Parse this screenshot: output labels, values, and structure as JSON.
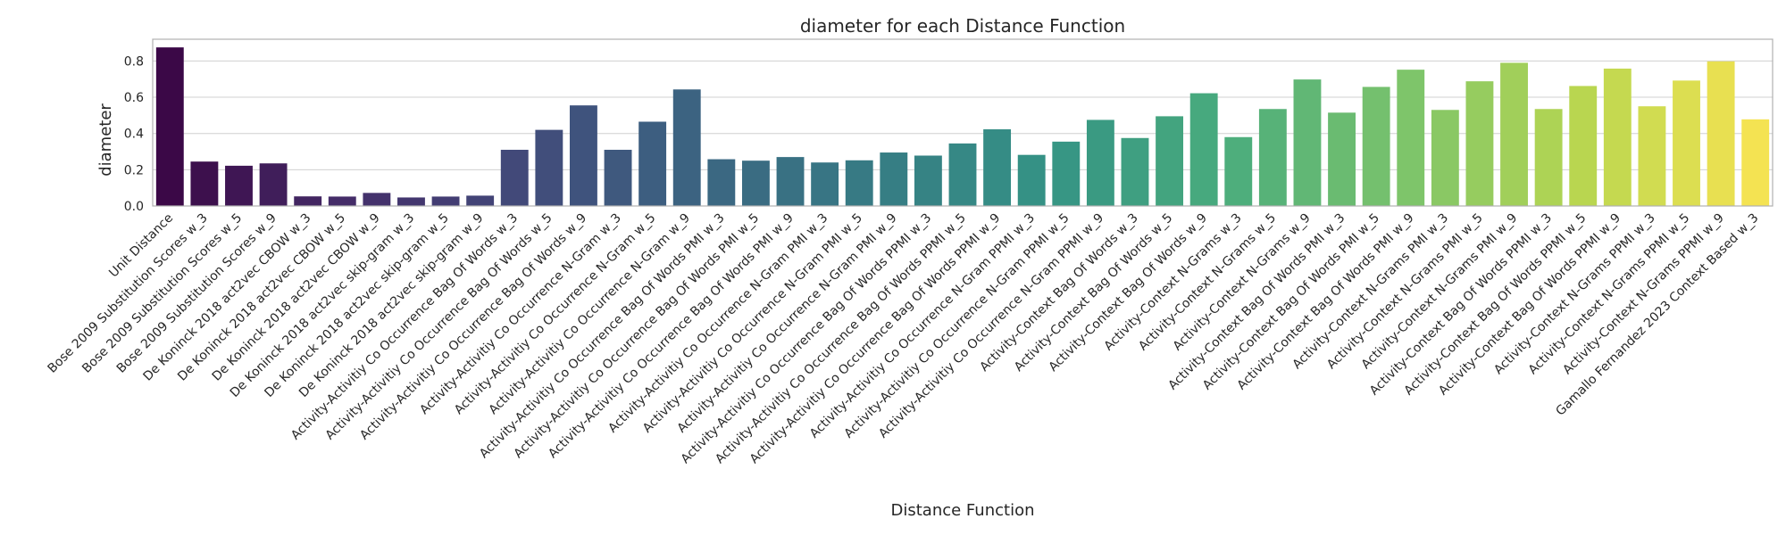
{
  "chart_data": {
    "type": "bar",
    "title": "diameter for each Distance Function",
    "xlabel": "Distance Function",
    "ylabel": "diameter",
    "ylim": [
      0,
      0.92
    ],
    "yticks": [
      0.0,
      0.2,
      0.4,
      0.6,
      0.8
    ],
    "ytick_labels": [
      "0.0",
      "0.2",
      "0.4",
      "0.6",
      "0.8"
    ],
    "grid": true,
    "legend": "none",
    "palette": "viridis",
    "colors": {
      "grid": "#d0d0d0",
      "axis": "#b0b0b0",
      "text": "#262626"
    },
    "categories": [
      "Unit Distance",
      "Bose 2009 Substitution Scores w_3",
      "Bose 2009 Substitution Scores w_5",
      "Bose 2009 Substitution Scores w_9",
      "De Koninck 2018 act2vec CBOW w_3",
      "De Koninck 2018 act2vec CBOW w_5",
      "De Koninck 2018 act2vec CBOW w_9",
      "De Koninck 2018 act2vec skip-gram w_3",
      "De Koninck 2018 act2vec skip-gram w_5",
      "De Koninck 2018 act2vec skip-gram w_9",
      "Activity-Activitiy Co Occurrence Bag Of Words w_3",
      "Activity-Activitiy Co Occurrence Bag Of Words w_5",
      "Activity-Activitiy Co Occurrence Bag Of Words w_9",
      "Activity-Activitiy Co Occurrence N-Gram w_3",
      "Activity-Activitiy Co Occurrence N-Gram w_5",
      "Activity-Activitiy Co Occurrence N-Gram w_9",
      "Activity-Activitiy Co Occurrence Bag Of Words PMI w_3",
      "Activity-Activitiy Co Occurrence Bag Of Words PMI w_5",
      "Activity-Activitiy Co Occurrence Bag Of Words PMI w_9",
      "Activity-Activitiy Co Occurrence N-Gram PMI w_3",
      "Activity-Activitiy Co Occurrence N-Gram PMI w_5",
      "Activity-Activitiy Co Occurrence N-Gram PMI w_9",
      "Activity-Activitiy Co Occurrence Bag Of Words PPMI w_3",
      "Activity-Activitiy Co Occurrence Bag Of Words PPMI w_5",
      "Activity-Activitiy Co Occurrence Bag Of Words PPMI w_9",
      "Activity-Activitiy Co Occurrence N-Gram PPMI w_3",
      "Activity-Activitiy Co Occurrence N-Gram PPMI w_5",
      "Activity-Activitiy Co Occurrence N-Gram PPMI w_9",
      "Activity-Context Bag Of Words w_3",
      "Activity-Context Bag Of Words w_5",
      "Activity-Context Bag Of Words w_9",
      "Activity-Context N-Grams w_3",
      "Activity-Context N-Grams w_5",
      "Activity-Context N-Grams w_9",
      "Activity-Context Bag Of Words PMI w_3",
      "Activity-Context Bag Of Words PMI w_5",
      "Activity-Context Bag Of Words PMI w_9",
      "Activity-Context N-Grams PMI w_3",
      "Activity-Context N-Grams PMI w_5",
      "Activity-Context N-Grams PMI w_9",
      "Activity-Context Bag Of Words PPMI w_3",
      "Activity-Context Bag Of Words PPMI w_5",
      "Activity-Context Bag Of Words PPMI w_9",
      "Activity-Context N-Grams PPMI w_3",
      "Activity-Context N-Grams PPMI w_5",
      "Activity-Context N-Grams PPMI w_9",
      "Gamallo Fernandez 2023 Context Based w_3"
    ],
    "values": [
      0.875,
      0.245,
      0.222,
      0.235,
      0.053,
      0.052,
      0.072,
      0.047,
      0.052,
      0.057,
      0.31,
      0.42,
      0.555,
      0.31,
      0.465,
      0.643,
      0.258,
      0.25,
      0.27,
      0.24,
      0.252,
      0.295,
      0.278,
      0.345,
      0.423,
      0.282,
      0.355,
      0.475,
      0.375,
      0.495,
      0.622,
      0.38,
      0.535,
      0.698,
      0.515,
      0.657,
      0.752,
      0.53,
      0.688,
      0.79,
      0.535,
      0.662,
      0.758,
      0.55,
      0.692,
      0.798,
      0.478
    ]
  }
}
